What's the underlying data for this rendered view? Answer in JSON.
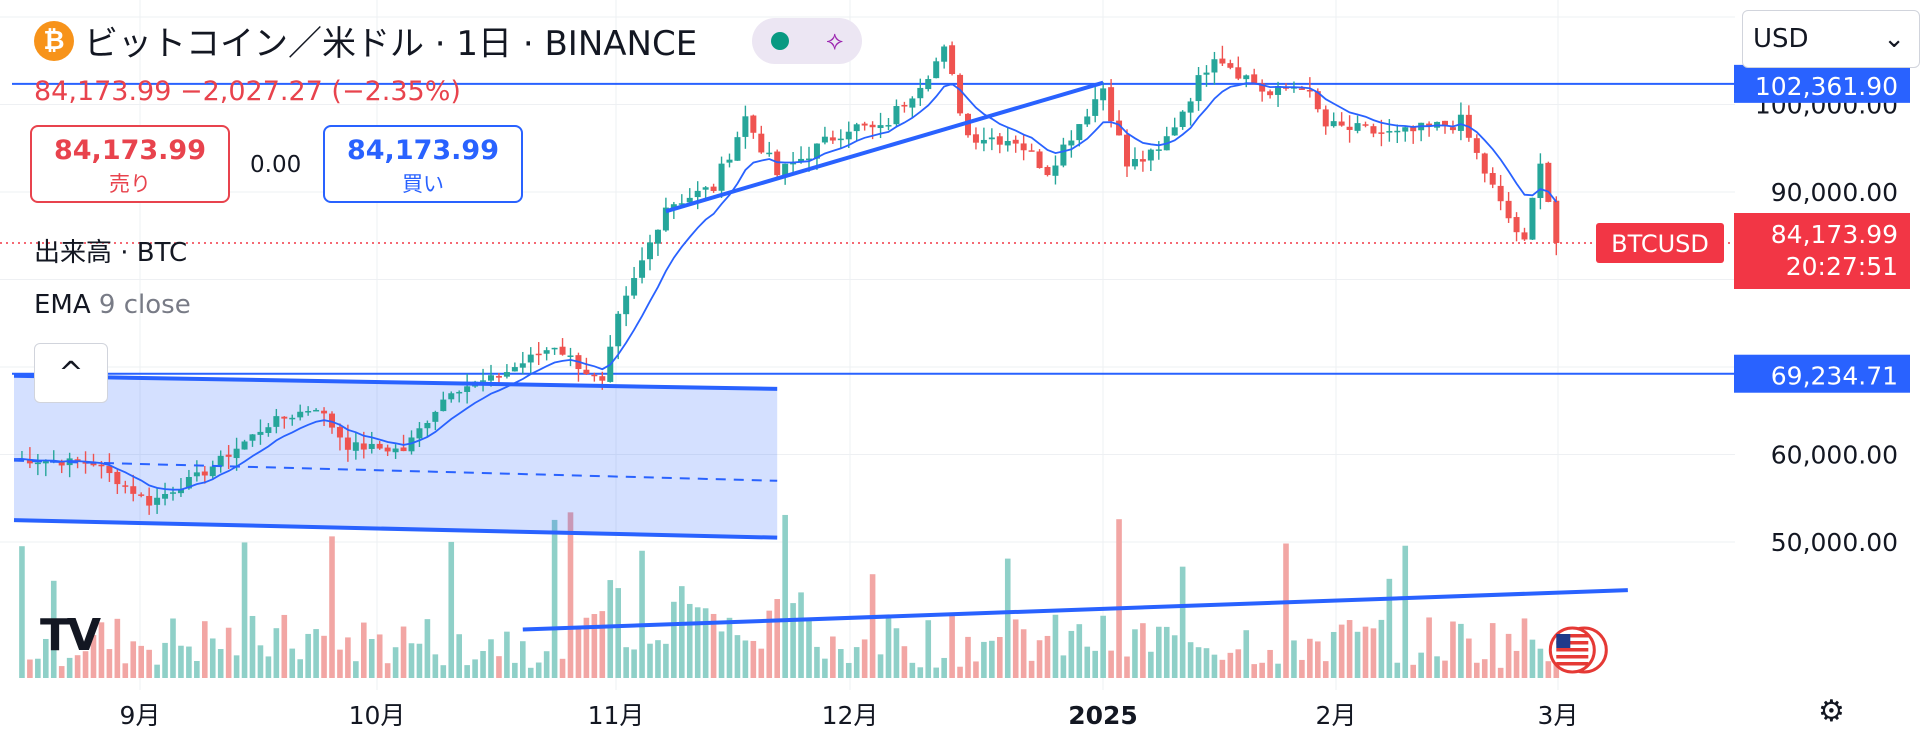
{
  "header": {
    "title": "ビットコイン／米ドル · 1日 · BINANCE",
    "btc_glyph": "₿",
    "share_glyph": "⟡",
    "price_change": "84,173.99 −2,027.27 (−2.35%)"
  },
  "trade": {
    "sell_price": "84,173.99",
    "sell_label": "売り",
    "spread": "0.00",
    "buy_price": "84,173.99",
    "buy_label": "買い"
  },
  "indicators": {
    "volume_label": "出来高 · BTC",
    "ema_name": "EMA",
    "ema_params": "9 close",
    "collapse_glyph": "^"
  },
  "toolbar": {
    "currency": "USD",
    "currency_caret": "⌄",
    "logo": "TV",
    "settings_glyph": "⚙"
  },
  "colors": {
    "up": "#26a69a",
    "down": "#ef5350",
    "up_vol": "#8fd0c8",
    "down_vol": "#f2a6a4",
    "ema": "#2962ff",
    "drawing": "#2962ff",
    "badge_red": "#f23645",
    "badge_blue": "#2962ff"
  },
  "chart_data": {
    "type": "candlestick",
    "symbol": "BTCUSD",
    "exchange": "BINANCE",
    "interval": "1D",
    "x_tick_labels": [
      "9月",
      "10月",
      "11月",
      "12月",
      "2025",
      "2月",
      "3月"
    ],
    "y_tick_labels": [
      "100,000.00",
      "90,000.00",
      "60,000.00",
      "50,000.00"
    ],
    "ylim": [
      40000,
      110000
    ],
    "current_price": "84,173.99",
    "countdown": "20:27:51",
    "price_badge_label": "BTCUSD",
    "level_labels": [
      "102,361.90",
      "69,234.71"
    ],
    "horizontal_levels": [
      102361.9,
      69234.71
    ],
    "anchors": [
      {
        "date": "2024-08-22",
        "price": 59500
      },
      {
        "date": "2024-09-01",
        "price": 59000
      },
      {
        "date": "2024-09-08",
        "price": 54500
      },
      {
        "date": "2024-09-15",
        "price": 58000
      },
      {
        "date": "2024-09-23",
        "price": 63500
      },
      {
        "date": "2024-09-29",
        "price": 65500
      },
      {
        "date": "2024-10-03",
        "price": 61000
      },
      {
        "date": "2024-10-10",
        "price": 60500
      },
      {
        "date": "2024-10-16",
        "price": 67500
      },
      {
        "date": "2024-10-21",
        "price": 68500
      },
      {
        "date": "2024-10-29",
        "price": 72500
      },
      {
        "date": "2024-11-04",
        "price": 68000
      },
      {
        "date": "2024-11-06",
        "price": 75500
      },
      {
        "date": "2024-11-12",
        "price": 88500
      },
      {
        "date": "2024-11-18",
        "price": 90500
      },
      {
        "date": "2024-11-22",
        "price": 98500
      },
      {
        "date": "2024-11-26",
        "price": 92000
      },
      {
        "date": "2024-12-05",
        "price": 97500
      },
      {
        "date": "2024-12-09",
        "price": 97000
      },
      {
        "date": "2024-12-17",
        "price": 106000
      },
      {
        "date": "2024-12-20",
        "price": 96500
      },
      {
        "date": "2024-12-26",
        "price": 96000
      },
      {
        "date": "2024-12-30",
        "price": 92500
      },
      {
        "date": "2025-01-06",
        "price": 102000
      },
      {
        "date": "2025-01-09",
        "price": 93000
      },
      {
        "date": "2025-01-13",
        "price": 94500
      },
      {
        "date": "2025-01-20",
        "price": 106000
      },
      {
        "date": "2025-01-27",
        "price": 101000
      },
      {
        "date": "2025-01-31",
        "price": 102500
      },
      {
        "date": "2025-02-03",
        "price": 97500
      },
      {
        "date": "2025-02-12",
        "price": 96500
      },
      {
        "date": "2025-02-20",
        "price": 98000
      },
      {
        "date": "2025-02-25",
        "price": 88500
      },
      {
        "date": "2025-02-28",
        "price": 84000
      },
      {
        "date": "2025-03-02",
        "price": 94000
      },
      {
        "date": "2025-03-04",
        "price": 84173.99
      }
    ],
    "drawings": {
      "channel_upper": [
        {
          "date": "2024-08-22",
          "price": 69000
        },
        {
          "date": "2024-11-26",
          "price": 67500
        }
      ],
      "channel_mid": [
        {
          "date": "2024-08-22",
          "price": 59300
        },
        {
          "date": "2024-11-26",
          "price": 57000
        }
      ],
      "channel_lower": [
        {
          "date": "2024-08-22",
          "price": 52500
        },
        {
          "date": "2024-11-26",
          "price": 50500
        }
      ],
      "trendline_upper": [
        {
          "date": "2024-11-12",
          "price": 87800
        },
        {
          "date": "2025-01-06",
          "price": 102500
        }
      ],
      "trendline_volume": [
        {
          "date": "2024-10-25",
          "price": 40000
        },
        {
          "date": "2025-03-13",
          "price": 44500
        }
      ]
    }
  }
}
